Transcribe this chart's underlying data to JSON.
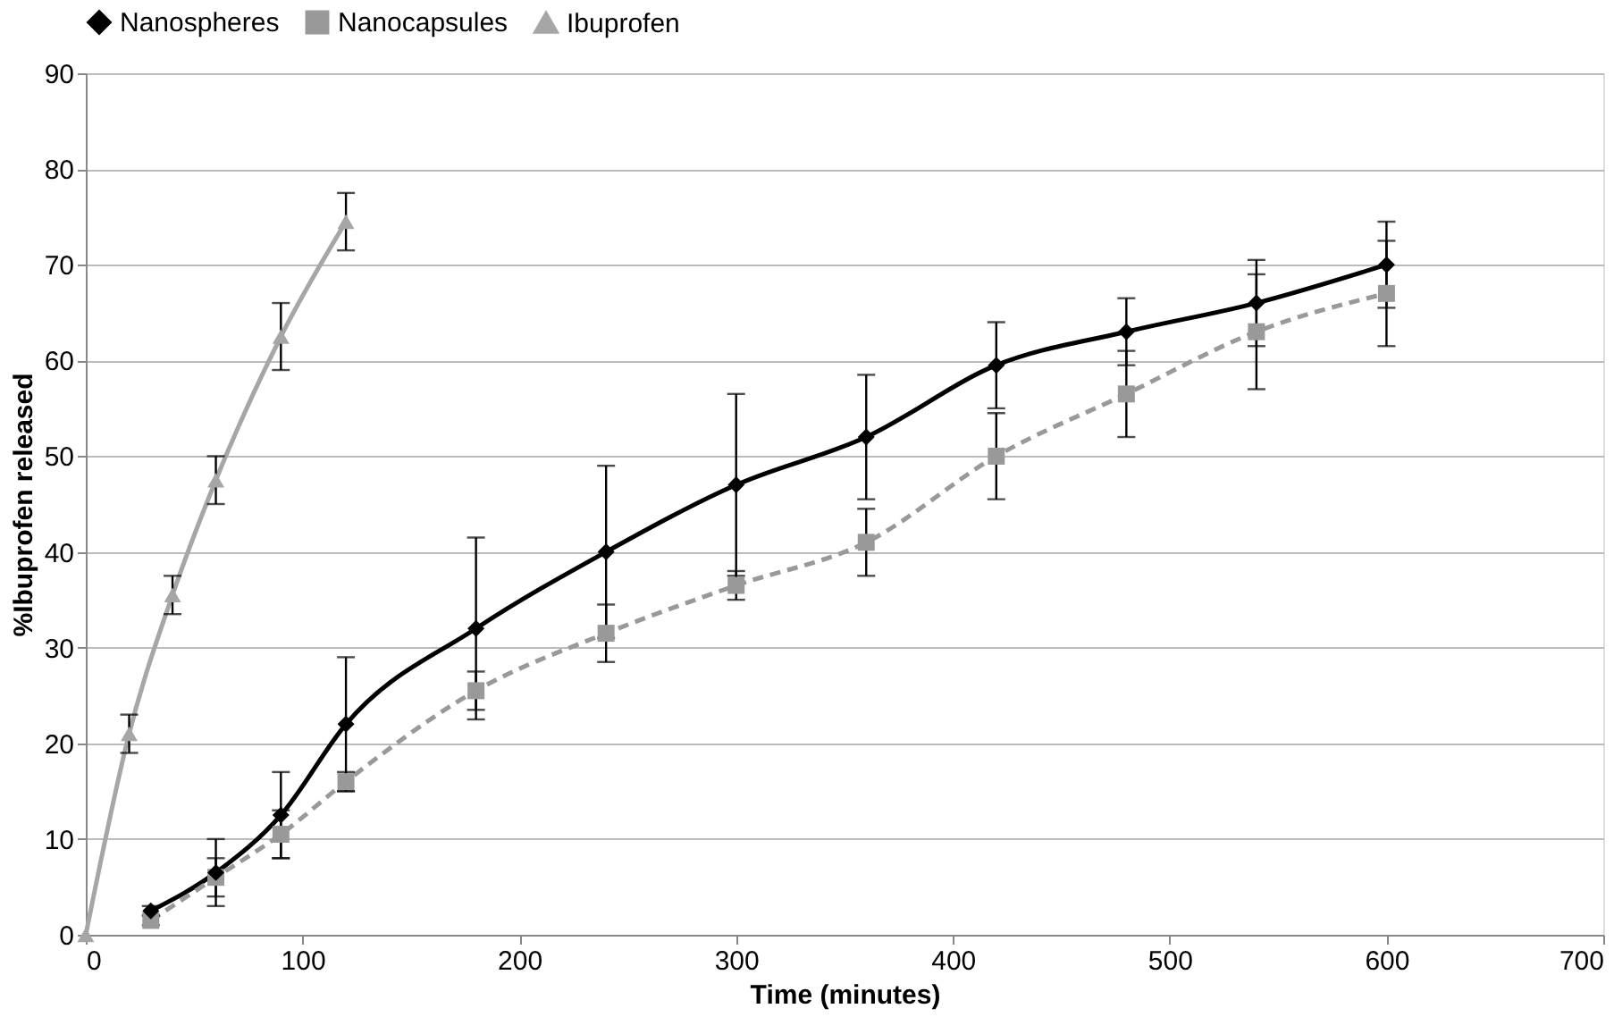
{
  "chart_data": {
    "type": "line",
    "xlabel": "Time (minutes)",
    "ylabel": "%Ibuprofen released",
    "xlim": [
      0,
      700
    ],
    "xticks": [
      0,
      100,
      200,
      300,
      400,
      500,
      600,
      700
    ],
    "ylim": [
      0,
      90
    ],
    "yticks": [
      0,
      10,
      20,
      30,
      40,
      50,
      60,
      70,
      80,
      90
    ],
    "grid": "y",
    "legend": "top",
    "series": [
      {
        "name": "Nanospheres",
        "color": "#000000",
        "marker": "diamond",
        "line_style": "solid",
        "x": [
          30,
          60,
          90,
          120,
          180,
          240,
          300,
          360,
          420,
          480,
          540,
          600
        ],
        "values": [
          2.5,
          6.5,
          12.5,
          22,
          32,
          40,
          47,
          52,
          59.5,
          63,
          66,
          70
        ],
        "errors": [
          0.5,
          3.5,
          4.5,
          7,
          9.5,
          9,
          9.5,
          6.5,
          4.5,
          3.5,
          4.5,
          4.5
        ]
      },
      {
        "name": "Nanocapsules",
        "color": "#999999",
        "marker": "square",
        "line_style": "dashed",
        "x": [
          30,
          60,
          90,
          120,
          180,
          240,
          300,
          360,
          420,
          480,
          540,
          600
        ],
        "values": [
          1.5,
          6,
          10.5,
          16,
          25.5,
          31.5,
          36.5,
          41,
          50,
          56.5,
          63,
          67
        ],
        "errors": [
          0.5,
          2,
          2.5,
          1,
          2,
          3,
          1.5,
          3.5,
          4.5,
          4.5,
          6,
          5.5
        ]
      },
      {
        "name": "Ibuprofen",
        "color": "#a6a6a6",
        "marker": "triangle",
        "line_style": "solid",
        "x": [
          0,
          20,
          40,
          60,
          90,
          120
        ],
        "values": [
          0,
          21,
          35.5,
          47.5,
          62.5,
          74.5
        ],
        "errors": [
          null,
          2,
          2,
          2.5,
          3.5,
          3
        ]
      }
    ]
  }
}
